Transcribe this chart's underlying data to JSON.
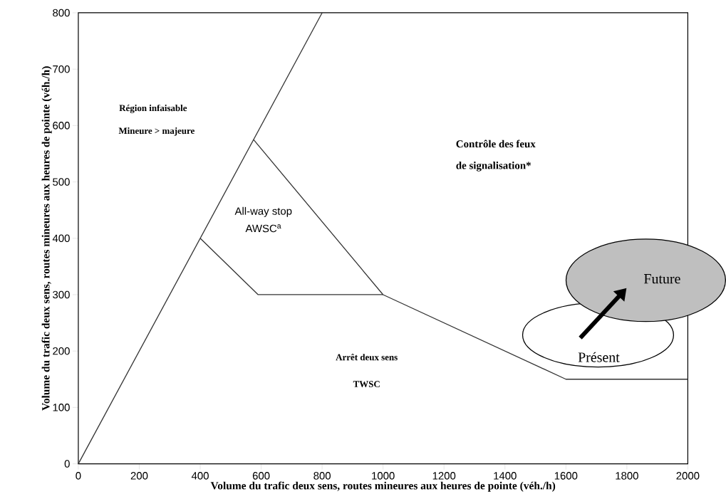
{
  "chart_data": {
    "type": "line",
    "xlabel": "Volume du trafic deux sens, routes mineures aux heures de pointe (véh./h)",
    "ylabel": "Volume du trafic deux sens, routes mineures aux heures de pointe (véh./h)",
    "series": [
      {
        "x": [
          0,
          800
        ],
        "values": [
          0,
          800
        ],
        "color": "#333333"
      },
      {
        "x": [
          400,
          590,
          1000
        ],
        "values": [
          400,
          300,
          300
        ],
        "color": "#333333"
      },
      {
        "x": [
          575,
          1000,
          1600,
          2000
        ],
        "values": [
          575,
          300,
          150,
          150
        ],
        "color": "#333333"
      }
    ],
    "xlim": [
      0,
      2000
    ],
    "ylim": [
      0,
      800
    ],
    "xticks": [
      0,
      200,
      400,
      600,
      800,
      1000,
      1200,
      1400,
      1600,
      1800,
      2000
    ],
    "yticks": [
      0,
      100,
      200,
      300,
      400,
      500,
      600,
      700,
      800
    ],
    "grid": false,
    "marker": "none",
    "line_style": "solid",
    "annotations": [
      "Région infaisable",
      "Mineure > majeure",
      "All-way stop",
      "AWSC$^{a}$",
      "Contrôle des feux",
      "de signalisation*",
      "Arrêt deux sens",
      "TWSC",
      "Future",
      "Présent"
    ]
  }
}
